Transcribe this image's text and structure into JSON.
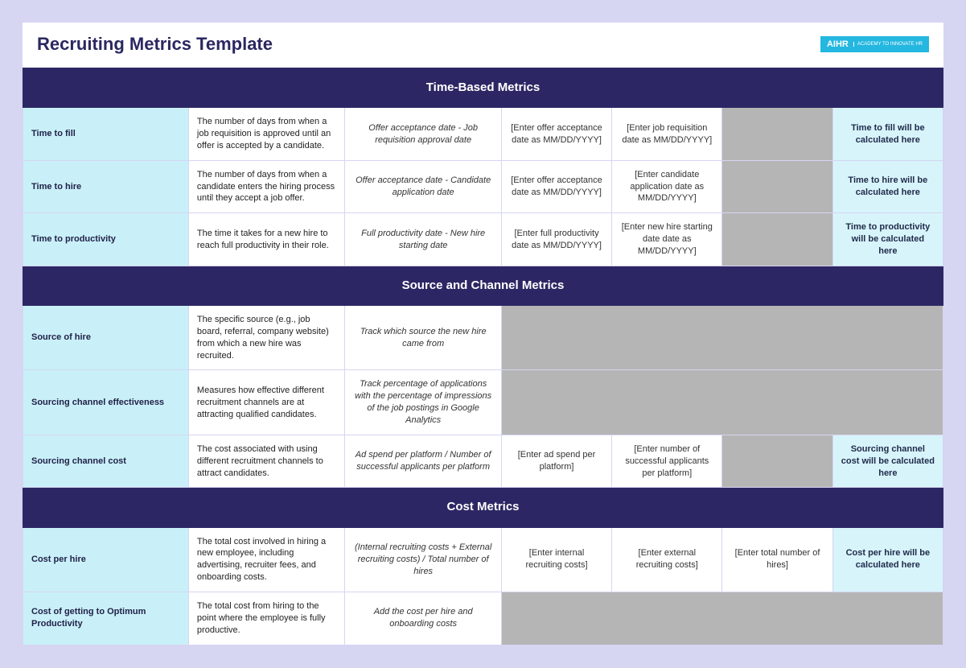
{
  "page": {
    "title": "Recruiting Metrics Template",
    "logo_main": "AIHR",
    "logo_sub": "ACADEMY TO INNOVATE HR"
  },
  "colors": {
    "page_bg": "#d6d5f2",
    "section_header_bg": "#2c2764",
    "label_bg": "#c9f0f8",
    "result_bg": "#d7f4fa",
    "spacer_bg": "#b5b5b5",
    "logo_bg": "#24b7e0"
  },
  "layout": {
    "col_widths_pct": [
      18,
      17,
      17,
      12,
      12,
      12,
      12
    ]
  },
  "sections": [
    {
      "title": "Time-Based Metrics",
      "rows": [
        {
          "label": "Time to fill",
          "desc": "The number of days from when a job requisition is approved until an offer is accepted by a candidate.",
          "formula": "Offer acceptance date - Job requisition approval date",
          "in1": "[Enter offer acceptance date as MM/DD/YYYY]",
          "in2": "[Enter job requisition date as MM/DD/YYYY]",
          "in3": "",
          "in3_gray": true,
          "result": "Time to fill will be calculated here"
        },
        {
          "label": "Time to hire",
          "desc": "The number of days from when a candidate enters the hiring process until they accept a job offer.",
          "formula": "Offer acceptance date - Candidate application date",
          "in1": "[Enter offer acceptance date as MM/DD/YYYY]",
          "in2": "[Enter candidate application date as MM/DD/YYYY]",
          "in3": "",
          "in3_gray": true,
          "result": "Time to hire will be calculated here"
        },
        {
          "label": "Time to productivity",
          "desc": "The time it takes for a new hire to reach full productivity in their role.",
          "formula": "Full productivity date - New hire starting date",
          "in1": "[Enter full productivity date as MM/DD/YYYY]",
          "in2": "[Enter new hire starting date date as MM/DD/YYYY]",
          "in3": "",
          "in3_gray": true,
          "result": "Time to productivity will be calculated here"
        }
      ]
    },
    {
      "title": "Source and Channel Metrics",
      "rows": [
        {
          "label": "Source of hire",
          "desc": "The specific source (e.g., job board, referral, company website) from which a new hire was recruited.",
          "formula": "Track which source the new hire came from",
          "rest_gray": true
        },
        {
          "label": "Sourcing channel effectiveness",
          "desc": "Measures how effective different recruitment channels are at attracting qualified candidates.",
          "formula": "Track percentage of applications with the percentage of impressions of the job postings in Google Analytics",
          "rest_gray": true
        },
        {
          "label": "Sourcing channel cost",
          "desc": "The cost associated with using different recruitment channels to attract candidates.",
          "formula": "Ad spend per platform / Number of successful applicants per platform",
          "in1": "[Enter ad spend per platform]",
          "in2": "[Enter number of successful applicants per platform]",
          "in3": "",
          "in3_gray": true,
          "result": "Sourcing channel cost will be calculated here"
        }
      ]
    },
    {
      "title": "Cost Metrics",
      "rows": [
        {
          "label": "Cost per hire",
          "desc": "The total cost involved in hiring a new employee, including advertising, recruiter fees, and onboarding costs.",
          "formula": "(Internal recruiting costs + External recruiting costs) / Total number of hires",
          "in1": "[Enter internal recruiting costs]",
          "in2": "[Enter external recruiting costs]",
          "in3": "[Enter total number of hires]",
          "result": "Cost per hire will be calculated here"
        },
        {
          "label": "Cost of getting to Optimum Productivity",
          "desc": "The total cost from hiring to the point where the employee is fully productive.",
          "formula": "Add the cost per hire and onboarding costs",
          "rest_gray": true
        }
      ]
    }
  ]
}
